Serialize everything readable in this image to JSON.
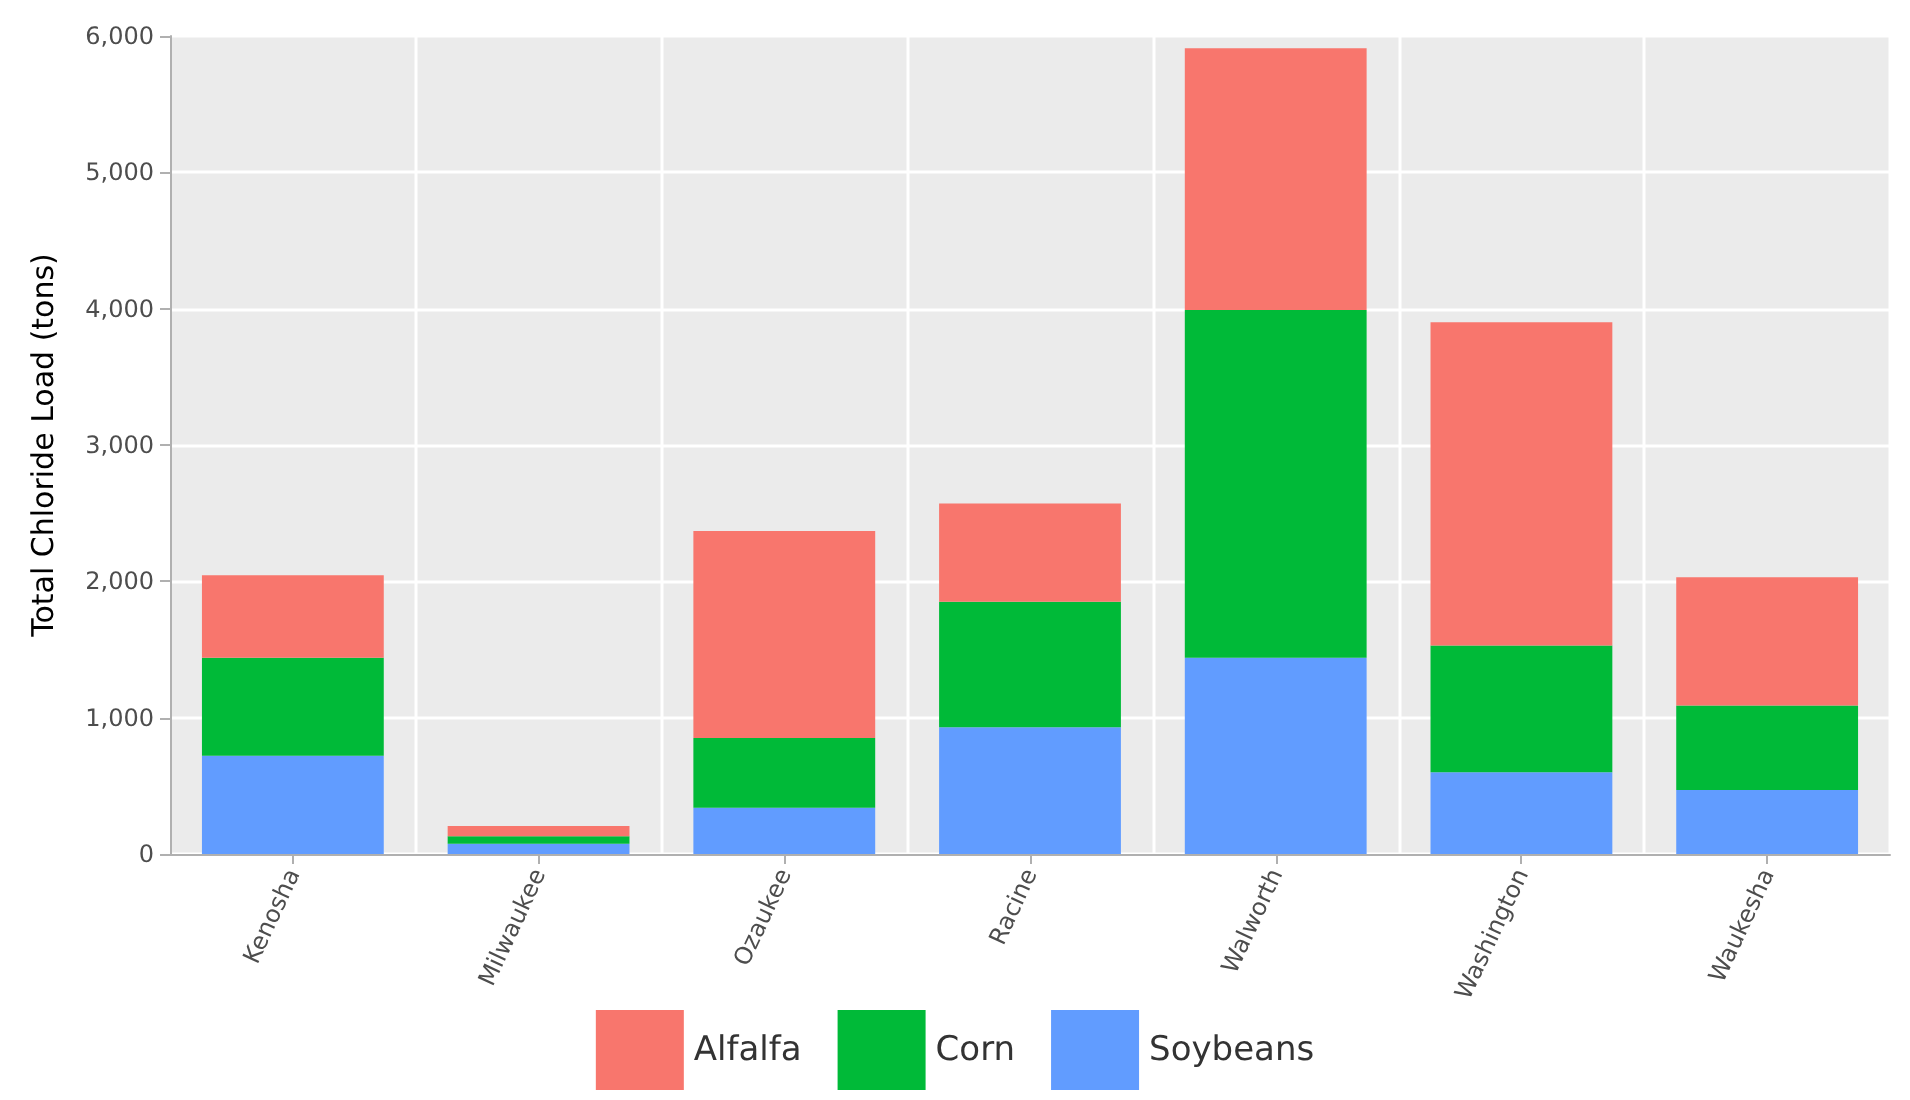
{
  "chart_data": {
    "type": "bar",
    "stacked": true,
    "ylabel": "Total Chloride Load (tons)",
    "categories": [
      "Kenosha",
      "Milwaukee",
      "Ozaukee",
      "Racine",
      "Walworth",
      "Washington",
      "Waukesha"
    ],
    "series": [
      {
        "name": "Soybeans",
        "color": "#619cff",
        "values": [
          720,
          75,
          340,
          930,
          1440,
          600,
          470
        ]
      },
      {
        "name": "Corn",
        "color": "#00ba38",
        "values": [
          720,
          55,
          510,
          920,
          2550,
          930,
          620
        ]
      },
      {
        "name": "Alfalfa",
        "color": "#f8766d",
        "values": [
          605,
          75,
          1520,
          720,
          1920,
          2370,
          940
        ]
      }
    ],
    "ylim": [
      0,
      6000
    ],
    "yticks": [
      {
        "value": 0,
        "label": "0"
      },
      {
        "value": 1000,
        "label": "1,000"
      },
      {
        "value": 2000,
        "label": "2,000"
      },
      {
        "value": 3000,
        "label": "3,000"
      },
      {
        "value": 4000,
        "label": "4,000"
      },
      {
        "value": 5000,
        "label": "5,000"
      },
      {
        "value": 6000,
        "label": "6,000"
      }
    ],
    "grid": true,
    "legend": "bottom"
  }
}
